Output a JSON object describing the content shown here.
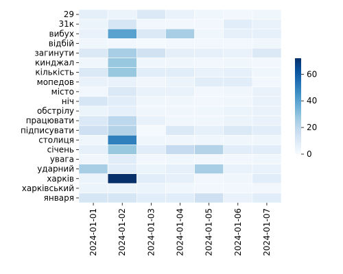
{
  "chart_data": {
    "type": "heatmap",
    "title": "",
    "xlabel": "",
    "ylabel": "",
    "x": [
      "2024-01-01",
      "2024-01-02",
      "2024-01-03",
      "2024-01-04",
      "2024-01-05",
      "2024-01-06",
      "2024-01-07"
    ],
    "y": [
      "29",
      "31к",
      "вибух",
      "відбій",
      "загинути",
      "кинджал",
      "кількість",
      "мопедов",
      "місто",
      "ніч",
      "обстрілу",
      "працювати",
      "підписувати",
      "столиця",
      "січень",
      "увага",
      "ударний",
      "харків",
      "харківський",
      "января"
    ],
    "values": [
      [
        7,
        4,
        10,
        5,
        3,
        2,
        3
      ],
      [
        4,
        12,
        2,
        2,
        2,
        8,
        5
      ],
      [
        5,
        40,
        10,
        25,
        3,
        6,
        6
      ],
      [
        3,
        2,
        1,
        2,
        2,
        2,
        3
      ],
      [
        10,
        25,
        14,
        7,
        6,
        5,
        10
      ],
      [
        3,
        28,
        3,
        3,
        2,
        3,
        2
      ],
      [
        10,
        28,
        8,
        8,
        5,
        6,
        3
      ],
      [
        5,
        5,
        3,
        4,
        8,
        8,
        2
      ],
      [
        2,
        10,
        5,
        5,
        2,
        3,
        5
      ],
      [
        12,
        8,
        3,
        3,
        2,
        3,
        5
      ],
      [
        4,
        6,
        3,
        3,
        3,
        4,
        5
      ],
      [
        10,
        20,
        5,
        3,
        3,
        4,
        5
      ],
      [
        15,
        22,
        1,
        10,
        6,
        10,
        8
      ],
      [
        3,
        50,
        3,
        3,
        3,
        3,
        3
      ],
      [
        6,
        28,
        8,
        18,
        22,
        8,
        8
      ],
      [
        3,
        8,
        2,
        3,
        2,
        2,
        3
      ],
      [
        25,
        8,
        4,
        6,
        25,
        5,
        5
      ],
      [
        4,
        72,
        8,
        6,
        2,
        3,
        8
      ],
      [
        4,
        4,
        4,
        3,
        2,
        2,
        2
      ],
      [
        12,
        12,
        8,
        8,
        15,
        5,
        8
      ]
    ],
    "colorbar": {
      "min": 0,
      "max": 72,
      "ticks": [
        0,
        20,
        40,
        60
      ],
      "colormap": "Blues"
    },
    "grid": false,
    "legend": "colorbar-right"
  }
}
